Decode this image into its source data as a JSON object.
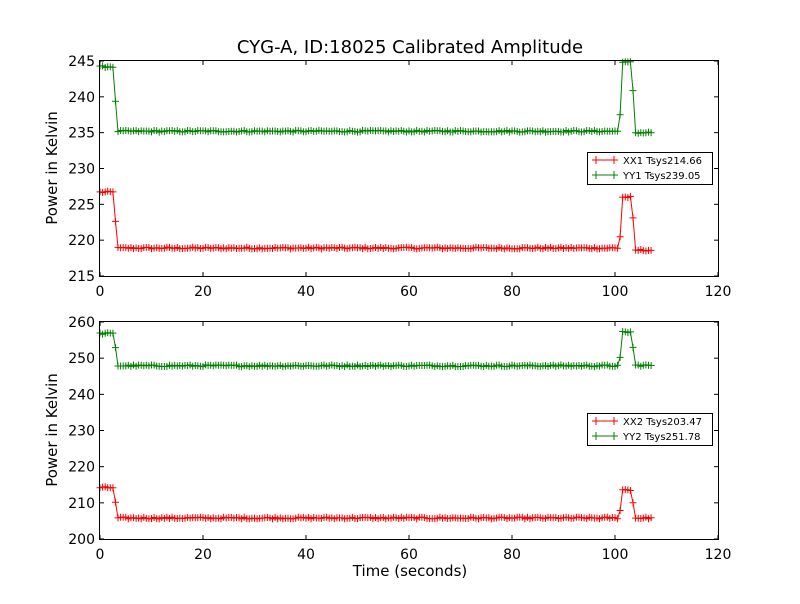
{
  "chart_data": [
    {
      "type": "line",
      "title": "CYG-A, ID:18025 Calibrated Amplitude",
      "xlabel": "",
      "ylabel": "Power in Kelvin",
      "xlim": [
        0,
        120
      ],
      "ylim": [
        215,
        245
      ],
      "xticks": [
        0,
        20,
        40,
        60,
        80,
        100,
        120
      ],
      "yticks": [
        215,
        220,
        225,
        230,
        235,
        240,
        245
      ],
      "legend_position": "right",
      "marker": "plus",
      "x": {
        "start": 0,
        "end": 107,
        "step": 0.5
      },
      "series": [
        {
          "name": "XX1 Tsys214.66",
          "color": "#ff0000",
          "segments": [
            {
              "x_start": 0,
              "x_end": 2.5,
              "value": 226.7
            },
            {
              "x_start": 3,
              "x_end": 3,
              "value": 222.7
            },
            {
              "x_start": 3.5,
              "x_end": 100.5,
              "value": 218.9
            },
            {
              "x_start": 101,
              "x_end": 101,
              "value": 220.5
            },
            {
              "x_start": 101.5,
              "x_end": 103,
              "value": 226.0
            },
            {
              "x_start": 103.5,
              "x_end": 103.5,
              "value": 223.0
            },
            {
              "x_start": 104,
              "x_end": 107,
              "value": 218.6
            }
          ]
        },
        {
          "name": "YY1 Tsys239.05",
          "color": "#008000",
          "segments": [
            {
              "x_start": 0,
              "x_end": 2.5,
              "value": 244.2
            },
            {
              "x_start": 3,
              "x_end": 3,
              "value": 239.3
            },
            {
              "x_start": 3.5,
              "x_end": 100.5,
              "value": 235.2
            },
            {
              "x_start": 101,
              "x_end": 101,
              "value": 237.6
            },
            {
              "x_start": 101.5,
              "x_end": 103,
              "value": 244.8
            },
            {
              "x_start": 103.5,
              "x_end": 103.5,
              "value": 240.9
            },
            {
              "x_start": 104,
              "x_end": 107,
              "value": 235.0
            }
          ]
        }
      ]
    },
    {
      "type": "line",
      "title": "",
      "xlabel": "Time (seconds)",
      "ylabel": "Power in Kelvin",
      "xlim": [
        0,
        120
      ],
      "ylim": [
        200,
        260
      ],
      "xticks": [
        0,
        20,
        40,
        60,
        80,
        100,
        120
      ],
      "yticks": [
        200,
        210,
        220,
        230,
        240,
        250,
        260
      ],
      "legend_position": "right",
      "marker": "plus",
      "x": {
        "start": 0,
        "end": 107,
        "step": 0.5
      },
      "series": [
        {
          "name": "XX2 Tsys203.47",
          "color": "#ff0000",
          "segments": [
            {
              "x_start": 0,
              "x_end": 2.5,
              "value": 214.2
            },
            {
              "x_start": 3,
              "x_end": 3,
              "value": 210.0
            },
            {
              "x_start": 3.5,
              "x_end": 100.5,
              "value": 205.8
            },
            {
              "x_start": 101,
              "x_end": 101,
              "value": 208.0
            },
            {
              "x_start": 101.5,
              "x_end": 103,
              "value": 213.6
            },
            {
              "x_start": 103.5,
              "x_end": 103.5,
              "value": 210.0
            },
            {
              "x_start": 104,
              "x_end": 107,
              "value": 205.8
            }
          ]
        },
        {
          "name": "YY2 Tsys251.78",
          "color": "#008000",
          "segments": [
            {
              "x_start": 0,
              "x_end": 2.5,
              "value": 256.8
            },
            {
              "x_start": 3,
              "x_end": 3,
              "value": 253.0
            },
            {
              "x_start": 3.5,
              "x_end": 100.5,
              "value": 247.9
            },
            {
              "x_start": 101,
              "x_end": 101,
              "value": 250.0
            },
            {
              "x_start": 101.5,
              "x_end": 103,
              "value": 257.2
            },
            {
              "x_start": 103.5,
              "x_end": 103.5,
              "value": 253.0
            },
            {
              "x_start": 104,
              "x_end": 107,
              "value": 248.0
            }
          ]
        }
      ]
    }
  ]
}
